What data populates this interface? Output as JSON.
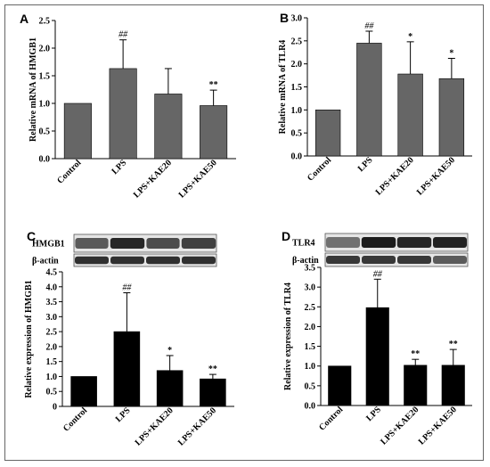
{
  "chart_data": [
    {
      "panel": "A",
      "type": "bar",
      "categories": [
        "Control",
        "LPS",
        "LPS+KAE20",
        "LPS+KAE50"
      ],
      "values": [
        1.0,
        1.63,
        1.17,
        0.96
      ],
      "errors": [
        0.0,
        0.52,
        0.46,
        0.28
      ],
      "significance": [
        "",
        "##",
        "",
        "**"
      ],
      "ylabel": "Relative mRNA of HMGB1",
      "ylim": [
        0,
        2.5
      ],
      "yticks": [
        "0.0",
        "0.5",
        "1.0",
        "1.5",
        "2.0",
        "2.5"
      ],
      "bar_color": "#666666",
      "grid": false
    },
    {
      "panel": "B",
      "type": "bar",
      "categories": [
        "Control",
        "LPS",
        "LPS+KAE20",
        "LPS+KAE50"
      ],
      "values": [
        1.0,
        2.45,
        1.78,
        1.68
      ],
      "errors": [
        0.0,
        0.26,
        0.7,
        0.44
      ],
      "significance": [
        "",
        "##",
        "*",
        "*"
      ],
      "ylabel": "Relative mRNA of TLR4",
      "ylim": [
        0,
        3.0
      ],
      "yticks": [
        "0.0",
        "0.5",
        "1.0",
        "1.5",
        "2.0",
        "2.5",
        "3.0"
      ],
      "bar_color": "#666666",
      "grid": false
    },
    {
      "panel": "C",
      "type": "bar",
      "categories": [
        "Control",
        "LPS",
        "LPS+KAE20",
        "LPS+KAE50"
      ],
      "values": [
        1.0,
        2.5,
        1.2,
        0.92
      ],
      "errors": [
        0.0,
        1.3,
        0.5,
        0.15
      ],
      "significance": [
        "",
        "##",
        "*",
        "**"
      ],
      "ylabel": "Relative expression of HMGB1",
      "ylim": [
        0,
        4.5
      ],
      "yticks": [
        "0",
        "0.5",
        "1.0",
        "1.5",
        "2.0",
        "2.5",
        "3.0",
        "3.5",
        "4.0",
        "4.5"
      ],
      "bar_color": "#000000",
      "blot_labels": [
        "HMGB1",
        "β-actin"
      ],
      "grid": false
    },
    {
      "panel": "D",
      "type": "bar",
      "categories": [
        "Control",
        "LPS",
        "LPS+KAE20",
        "LPS+KAE50"
      ],
      "values": [
        1.0,
        2.48,
        1.02,
        1.02
      ],
      "errors": [
        0.0,
        0.72,
        0.15,
        0.4
      ],
      "significance": [
        "",
        "##",
        "**",
        "**"
      ],
      "ylabel": "Relative expression of TLR4",
      "ylim": [
        0,
        3.5
      ],
      "yticks": [
        "0.0",
        "0.5",
        "1.0",
        "1.5",
        "2.0",
        "2.5",
        "3.0",
        "3.5"
      ],
      "bar_color": "#000000",
      "blot_labels": [
        "TLR4",
        "β-actin"
      ],
      "grid": false
    }
  ]
}
